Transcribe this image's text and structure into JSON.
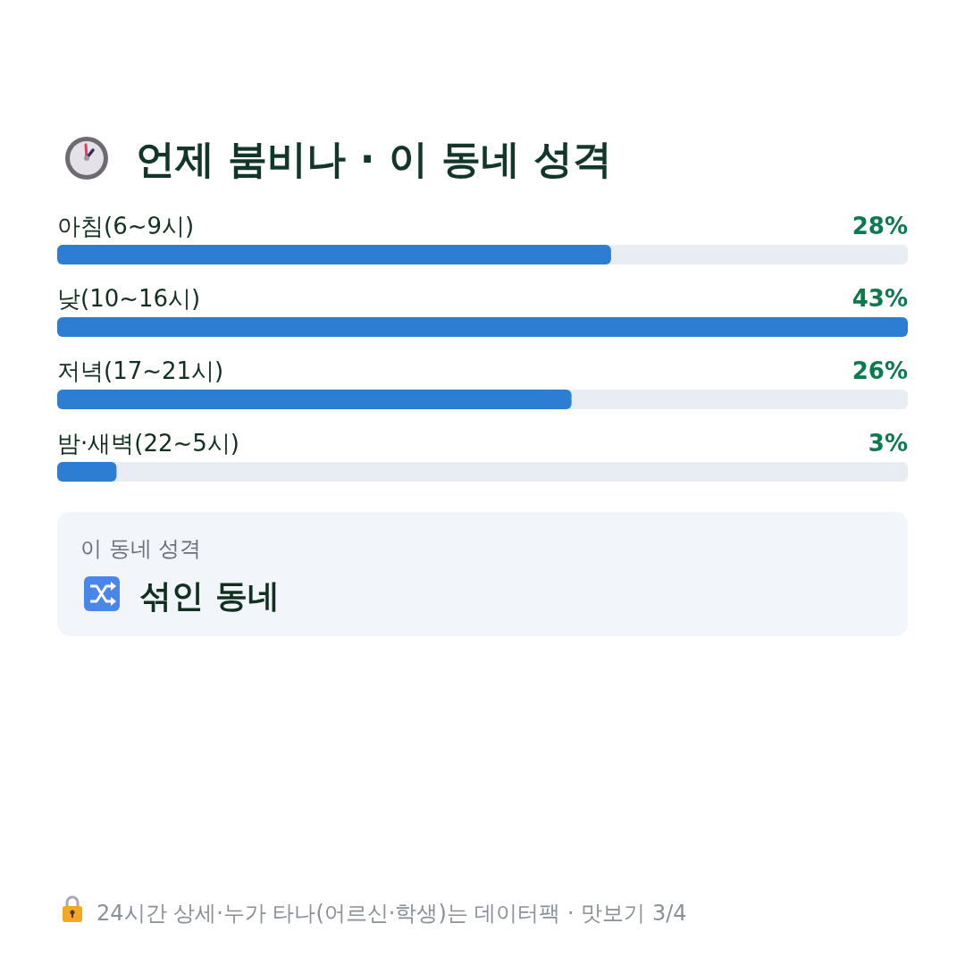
{
  "chart_data": {
    "type": "bar",
    "orientation": "horizontal",
    "title": "언제 붐비나 · 이 동네 성격",
    "categories": [
      "아침(6~9시)",
      "낮(10~16시)",
      "저녁(17~21시)",
      "밤·새벽(22~5시)"
    ],
    "values": [
      28,
      43,
      26,
      3
    ],
    "value_labels": [
      "28%",
      "43%",
      "26%",
      "3%"
    ],
    "color": "#2d7dd2",
    "annotations": [
      "이 동네 성격",
      "섞인 동네",
      "24시간 상세·누가 타나(어르신·학생)는 데이터팩 · 맛보기 3/4"
    ]
  }
}
